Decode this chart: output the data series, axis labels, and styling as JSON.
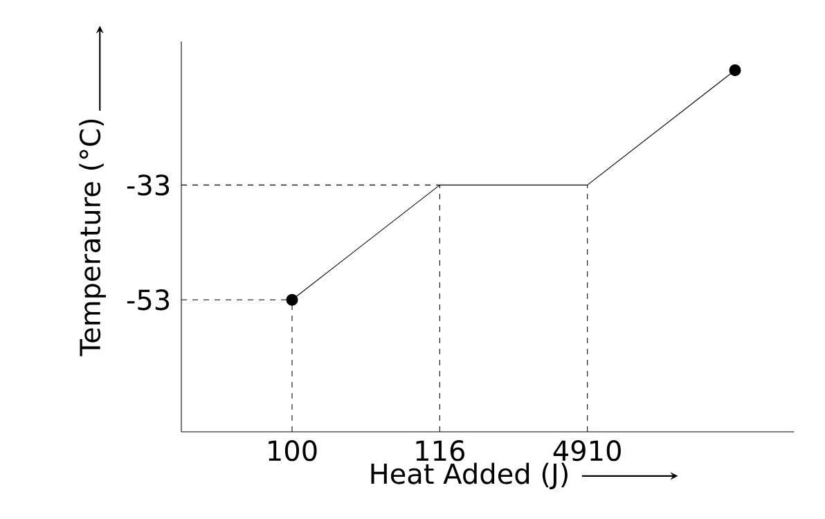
{
  "chart_data": {
    "type": "line",
    "xlabel": "Heat Added (J)",
    "ylabel": "Temperature (°C)",
    "categories": [
      "100",
      "116",
      "4910",
      null
    ],
    "series": [
      {
        "color": "#000000",
        "values": [
          -53,
          -33,
          -33,
          -13
        ]
      },
      {
        "type": "scatter",
        "color": "#000000",
        "marker": "circle",
        "values": [
          -53,
          null,
          null,
          -13
        ]
      }
    ],
    "ylim": [
      -76,
      -8
    ],
    "yticks": [
      -53,
      -33
    ],
    "ref_lines": [
      {
        "axis": "y",
        "value": -53,
        "line_style": "dashed"
      },
      {
        "axis": "y",
        "value": -33,
        "line_style": "dashed"
      },
      {
        "axis": "x",
        "value": "100",
        "line_style": "dashed"
      },
      {
        "axis": "x",
        "value": "116",
        "line_style": "dashed"
      },
      {
        "axis": "x",
        "value": "4910",
        "line_style": "dashed"
      }
    ],
    "marker": "none",
    "line_style": "solid",
    "grid": false
  }
}
